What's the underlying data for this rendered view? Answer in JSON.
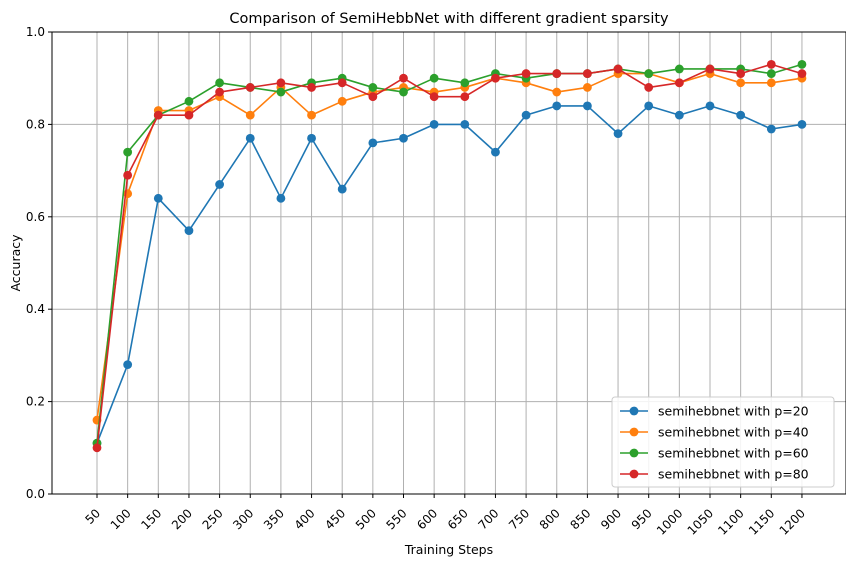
{
  "chart_data": {
    "type": "line",
    "title": "Comparison of SemiHebbNet with different gradient sparsity",
    "xlabel": "Training Steps",
    "ylabel": "Accuracy",
    "ylim": [
      0,
      1.0
    ],
    "yticks": [
      "0.0",
      "0.2",
      "0.4",
      "0.6",
      "0.8",
      "1.0"
    ],
    "grid": true,
    "legend_position": "bottom-right",
    "categories": [
      "50",
      "100",
      "150",
      "200",
      "250",
      "300",
      "350",
      "400",
      "450",
      "500",
      "550",
      "600",
      "650",
      "700",
      "750",
      "800",
      "850",
      "900",
      "950",
      "1000",
      "1050",
      "1100",
      "1150",
      "1200"
    ],
    "series": [
      {
        "name": "semihebbnet with p=20",
        "color": "#1f77b4",
        "values": [
          0.11,
          0.28,
          0.64,
          0.57,
          0.67,
          0.77,
          0.64,
          0.77,
          0.66,
          0.76,
          0.77,
          0.8,
          0.8,
          0.74,
          0.82,
          0.84,
          0.84,
          0.78,
          0.84,
          0.82,
          0.84,
          0.82,
          0.79,
          0.8
        ]
      },
      {
        "name": "semihebbnet with p=40",
        "color": "#ff7f0e",
        "values": [
          0.16,
          0.65,
          0.83,
          0.83,
          0.86,
          0.82,
          0.88,
          0.82,
          0.85,
          0.87,
          0.88,
          0.87,
          0.88,
          0.9,
          0.89,
          0.87,
          0.88,
          0.91,
          0.91,
          0.89,
          0.91,
          0.89,
          0.89,
          0.9
        ]
      },
      {
        "name": "semihebbnet with p=60",
        "color": "#2ca02c",
        "values": [
          0.11,
          0.74,
          0.82,
          0.85,
          0.89,
          0.88,
          0.87,
          0.89,
          0.9,
          0.88,
          0.87,
          0.9,
          0.89,
          0.91,
          0.9,
          0.91,
          0.91,
          0.92,
          0.91,
          0.92,
          0.92,
          0.92,
          0.91,
          0.93
        ]
      },
      {
        "name": "semihebbnet with p=80",
        "color": "#d62728",
        "values": [
          0.1,
          0.69,
          0.82,
          0.82,
          0.87,
          0.88,
          0.89,
          0.88,
          0.89,
          0.86,
          0.9,
          0.86,
          0.86,
          0.9,
          0.91,
          0.91,
          0.91,
          0.92,
          0.88,
          0.89,
          0.92,
          0.91,
          0.93,
          0.91
        ]
      }
    ]
  }
}
